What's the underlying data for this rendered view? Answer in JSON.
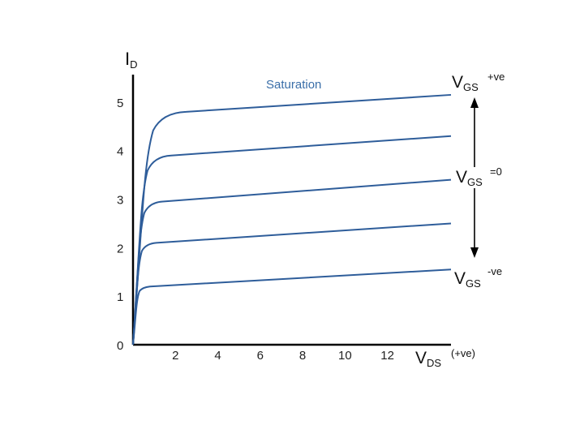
{
  "chart_data": {
    "type": "line",
    "y_axis": {
      "label_main": "I",
      "label_sub": "D",
      "ticks": [
        "0",
        "1",
        "2",
        "3",
        "4",
        "5"
      ],
      "ylim": [
        0,
        5.5
      ]
    },
    "x_axis": {
      "label_main": "V",
      "label_sub": "DS",
      "label_suffix": "(+ve)",
      "ticks": [
        "2",
        "4",
        "6",
        "8",
        "10",
        "12"
      ],
      "xlim": [
        0,
        15
      ]
    },
    "annotations": {
      "saturation": "Saturation",
      "vgs_top": {
        "main": "V",
        "sub": "GS",
        "sup": "+ve"
      },
      "vgs_mid": {
        "main": "V",
        "sub": "GS",
        "sup": "=0"
      },
      "vgs_bottom": {
        "main": "V",
        "sub": "GS",
        "sup": "-ve"
      }
    },
    "grid": false,
    "color": "#2e5d9a",
    "series": [
      {
        "knee": 2.5,
        "start": 4.8,
        "end": 5.15
      },
      {
        "knee": 1.8,
        "start": 3.9,
        "end": 4.3
      },
      {
        "knee": 1.4,
        "start": 2.95,
        "end": 3.4
      },
      {
        "knee": 1.1,
        "start": 2.1,
        "end": 2.5
      },
      {
        "knee": 0.8,
        "start": 1.2,
        "end": 1.55
      }
    ]
  }
}
